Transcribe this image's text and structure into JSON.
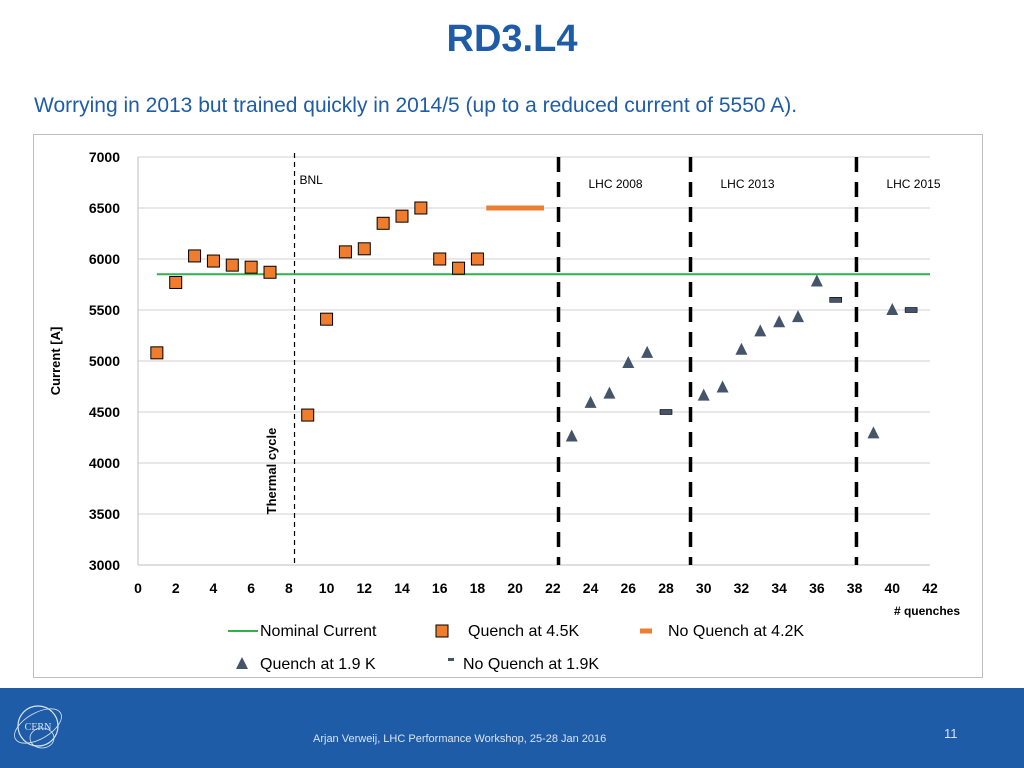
{
  "title": "RD3.L4",
  "subtitle": "Worrying in 2013 but trained quickly in 2014/5 (up to a reduced current of 5550 A).",
  "footer": {
    "text": "Arjan Verweij, LHC Performance Workshop, 25-28 Jan 2016",
    "page": "11",
    "logo_text": "CERN"
  },
  "chart_data": {
    "type": "scatter",
    "xlabel": "# quenches",
    "ylabel": "Current [A]",
    "xlim": [
      0,
      42
    ],
    "ylim": [
      3000,
      7000
    ],
    "xticks": [
      0,
      2,
      4,
      6,
      8,
      10,
      12,
      14,
      16,
      18,
      20,
      22,
      24,
      26,
      28,
      30,
      32,
      34,
      36,
      38,
      40,
      42
    ],
    "yticks": [
      3000,
      3500,
      4000,
      4500,
      5000,
      5500,
      6000,
      6500,
      7000
    ],
    "grid": true,
    "legend_position": "bottom",
    "nominal_current": {
      "name": "Nominal Current",
      "color": "#2db34a",
      "x": [
        1,
        42
      ],
      "y": [
        5850,
        5850
      ]
    },
    "series": [
      {
        "name": "Quench at 4.5K",
        "marker": "square",
        "color": "#f07d2d",
        "points": [
          [
            1,
            5080
          ],
          [
            2,
            5770
          ],
          [
            3,
            6030
          ],
          [
            4,
            5980
          ],
          [
            5,
            5940
          ],
          [
            6,
            5920
          ],
          [
            7,
            5870
          ],
          [
            9,
            4470
          ],
          [
            10,
            5410
          ],
          [
            11,
            6070
          ],
          [
            12,
            6100
          ],
          [
            13,
            6350
          ],
          [
            14,
            6420
          ],
          [
            15,
            6500
          ],
          [
            16,
            6000
          ],
          [
            17,
            5910
          ],
          [
            18,
            6000
          ]
        ]
      },
      {
        "name": "No Quench at 4.2K",
        "marker": "dash",
        "color": "#ed7d31",
        "points": [
          [
            19,
            6500
          ],
          [
            20,
            6500
          ],
          [
            21,
            6500
          ]
        ]
      },
      {
        "name": "Quench at 1.9 K",
        "marker": "triangle",
        "color": "#44546a",
        "points": [
          [
            23,
            4260
          ],
          [
            24,
            4590
          ],
          [
            25,
            4680
          ],
          [
            26,
            4980
          ],
          [
            27,
            5080
          ],
          [
            30,
            4660
          ],
          [
            31,
            4740
          ],
          [
            32,
            5110
          ],
          [
            33,
            5290
          ],
          [
            34,
            5380
          ],
          [
            35,
            5430
          ],
          [
            36,
            5780
          ],
          [
            39,
            4290
          ],
          [
            40,
            5500
          ]
        ]
      },
      {
        "name": "No Quench at 1.9K",
        "marker": "dash",
        "color": "#44546a",
        "points": [
          [
            28,
            4500
          ],
          [
            37,
            5600
          ],
          [
            41,
            5500
          ]
        ]
      }
    ],
    "regions": [
      {
        "label": "BNL",
        "x": 8.3,
        "style": "thin-dashed"
      },
      {
        "label": "LHC 2008",
        "x": 22.3,
        "style": "thick-dashed"
      },
      {
        "label": "LHC 2013",
        "x": 29.3,
        "style": "thick-dashed"
      },
      {
        "label": "LHC 2015",
        "x": 38.1,
        "style": "thick-dashed"
      }
    ],
    "annotations": [
      "Thermal cycle"
    ]
  }
}
